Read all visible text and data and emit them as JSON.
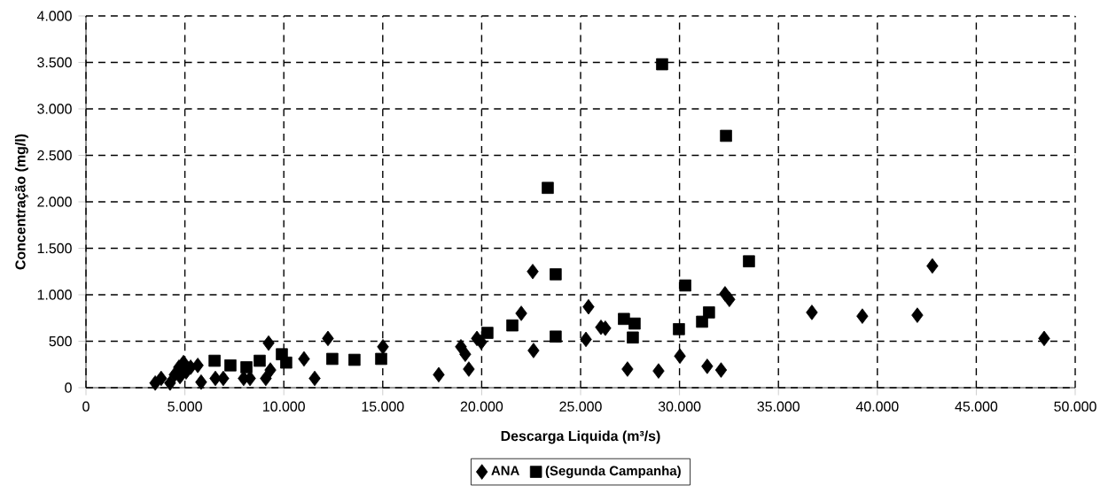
{
  "chart_data": {
    "type": "scatter",
    "xlabel": "Descarga Liquida (m³/s)",
    "ylabel": "Concentração (mg/l)",
    "xlim": [
      0,
      50000
    ],
    "ylim": [
      0,
      4000
    ],
    "xticks": [
      {
        "value": 0,
        "label": "0"
      },
      {
        "value": 5000,
        "label": "5.000"
      },
      {
        "value": 10000,
        "label": "10.000"
      },
      {
        "value": 15000,
        "label": "15.000"
      },
      {
        "value": 20000,
        "label": "20.000"
      },
      {
        "value": 25000,
        "label": "25.000"
      },
      {
        "value": 30000,
        "label": "30.000"
      },
      {
        "value": 35000,
        "label": "35.000"
      },
      {
        "value": 40000,
        "label": "40.000"
      },
      {
        "value": 45000,
        "label": "45.000"
      },
      {
        "value": 50000,
        "label": "50.000"
      }
    ],
    "yticks": [
      {
        "value": 0,
        "label": "0"
      },
      {
        "value": 500,
        "label": "500"
      },
      {
        "value": 1000,
        "label": "1.000"
      },
      {
        "value": 1500,
        "label": "1.500"
      },
      {
        "value": 2000,
        "label": "2.000"
      },
      {
        "value": 2500,
        "label": "2.500"
      },
      {
        "value": 3000,
        "label": "3.000"
      },
      {
        "value": 3500,
        "label": "3.500"
      },
      {
        "value": 4000,
        "label": "4.000"
      }
    ],
    "grid": true,
    "legend": "bottom",
    "series": [
      {
        "name": "ANA",
        "color": "#000000",
        "marker": "diamond",
        "x": [
          3500,
          3800,
          4250,
          4480,
          4700,
          4930,
          4750,
          5060,
          5290,
          5650,
          5820,
          6540,
          6940,
          7970,
          8290,
          8740,
          9090,
          9320,
          9230,
          11020,
          11560,
          12230,
          15010,
          17830,
          19350,
          18950,
          19170,
          19760,
          19980,
          22000,
          22620,
          22580,
          25400,
          25270,
          26030,
          26250,
          27370,
          28940,
          30020,
          31400,
          32080,
          32100,
          32300,
          32520,
          36690,
          39240,
          42020,
          42780,
          48430
        ],
        "values": [
          50,
          100,
          50,
          140,
          220,
          270,
          120,
          170,
          220,
          240,
          60,
          100,
          100,
          100,
          100,
          null,
          100,
          190,
          480,
          310,
          100,
          530,
          440,
          140,
          200,
          440,
          360,
          530,
          490,
          800,
          400,
          1250,
          870,
          520,
          650,
          640,
          200,
          180,
          340,
          230,
          null,
          190,
          1010,
          950,
          810,
          770,
          780,
          1310,
          530
        ]
      },
      {
        "name": "(Segunda Campanha)",
        "color": "#000000",
        "marker": "square",
        "x": [
          6500,
          7300,
          8110,
          8780,
          9900,
          10120,
          12450,
          13570,
          14920,
          20290,
          21550,
          23740,
          23740,
          27190,
          27730,
          27640,
          30290,
          29970,
          31140,
          31490,
          33510,
          29120,
          32350,
          23340
        ],
        "values": [
          290,
          240,
          220,
          290,
          360,
          270,
          310,
          300,
          310,
          590,
          670,
          1220,
          550,
          740,
          690,
          540,
          1100,
          630,
          710,
          810,
          1360,
          3480,
          2710,
          2150
        ]
      }
    ]
  }
}
